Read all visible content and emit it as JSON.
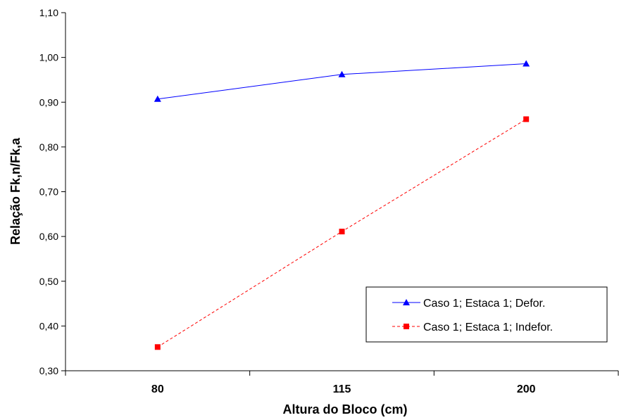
{
  "chart_data": {
    "type": "line",
    "categories": [
      "80",
      "115",
      "200"
    ],
    "xlabel": "Altura do Bloco (cm)",
    "ylabel": "Relação Fk,n/Fk,a",
    "ylim": [
      0.3,
      1.1
    ],
    "yticks": [
      "0,30",
      "0,40",
      "0,50",
      "0,60",
      "0,70",
      "0,80",
      "0,90",
      "1,00",
      "1,10"
    ],
    "grid": false,
    "legend_position": "bottom-right",
    "series": [
      {
        "name": "Caso 1; Estaca 1; Defor.",
        "values": [
          0.907,
          0.962,
          0.986
        ],
        "color": "#0000ff",
        "marker": "triangle",
        "line_style": "solid"
      },
      {
        "name": "Caso 1; Estaca 1; Indefor.",
        "values": [
          0.353,
          0.611,
          0.862
        ],
        "color": "#ff0000",
        "marker": "square",
        "line_style": "dashed"
      }
    ]
  }
}
